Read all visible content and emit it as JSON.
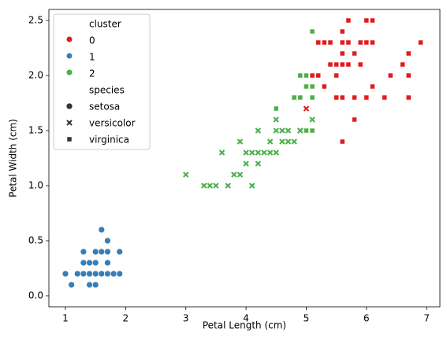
{
  "chart_data": {
    "type": "scatter",
    "xlabel": "Petal Length (cm)",
    "ylabel": "Petal Width (cm)",
    "xlim": [
      0.725,
      7.22
    ],
    "ylim": [
      -0.1,
      2.6
    ],
    "xticks": [
      1,
      2,
      3,
      4,
      5,
      6,
      7
    ],
    "yticks": [
      {
        "value": 0,
        "label": "0.0"
      },
      0.5,
      {
        "value": 1,
        "label": "1.0"
      },
      1.5,
      {
        "value": 2,
        "label": "2.0"
      },
      2.5
    ],
    "hue": {
      "title": "cluster",
      "levels": [
        {
          "name": "0",
          "color": "#e41a1c"
        },
        {
          "name": "1",
          "color": "#377eb8"
        },
        {
          "name": "2",
          "color": "#4daf4a"
        }
      ]
    },
    "style": {
      "title": "species",
      "levels": [
        {
          "name": "setosa",
          "marker": "circle"
        },
        {
          "name": "versicolor",
          "marker": "x"
        },
        {
          "name": "virginica",
          "marker": "square"
        }
      ]
    },
    "x": [
      1.4,
      1.3,
      1.5,
      1.7,
      1.4,
      1.5,
      1.6,
      1.4,
      1.1,
      1.2,
      1.5,
      1.3,
      1.7,
      1.5,
      1.0,
      1.9,
      1.6,
      1.9,
      1.6,
      1.3,
      1.7,
      1.7,
      1.8,
      1.4,
      4.7,
      4.5,
      4.9,
      4.0,
      4.6,
      3.3,
      3.9,
      3.5,
      4.2,
      4.4,
      4.1,
      3.9,
      4.8,
      4.3,
      5.0,
      3.8,
      3.7,
      5.1,
      4.5,
      4.7,
      4.4,
      4.1,
      4.6,
      4.0,
      4.2,
      3.0,
      3.6,
      4.2,
      3.4,
      4.8,
      4.9,
      4.5,
      6.0,
      5.1,
      5.9,
      5.6,
      5.8,
      6.6,
      4.5,
      6.3,
      6.1,
      5.1,
      5.3,
      5.5,
      5.0,
      5.1,
      5.3,
      6.7,
      6.9,
      5.0,
      5.7,
      4.9,
      6.7,
      4.9,
      5.7,
      6.0,
      4.8,
      5.6,
      5.8,
      6.1,
      6.4,
      5.6,
      5.1,
      5.6,
      6.1,
      5.6,
      5.4,
      5.9,
      5.7,
      5.2,
      5.0,
      5.2,
      5.4,
      5.1,
      6.7,
      5.8,
      6.3,
      5.5,
      5.8,
      5.5,
      5.6,
      6.0,
      5.9
    ],
    "y": [
      0.2,
      0.2,
      0.2,
      0.4,
      0.3,
      0.1,
      0.2,
      0.1,
      0.1,
      0.2,
      0.4,
      0.4,
      0.3,
      0.3,
      0.2,
      0.2,
      0.4,
      0.4,
      0.6,
      0.3,
      0.5,
      0.2,
      0.2,
      0.2,
      1.4,
      1.5,
      1.5,
      1.3,
      1.5,
      1.0,
      1.4,
      1.0,
      1.5,
      1.4,
      1.0,
      1.1,
      1.8,
      1.3,
      1.7,
      1.1,
      1.0,
      1.6,
      1.6,
      1.5,
      1.3,
      1.3,
      1.4,
      1.2,
      1.2,
      1.1,
      1.3,
      1.3,
      1.0,
      1.4,
      1.5,
      1.3,
      2.5,
      1.9,
      2.1,
      1.8,
      2.2,
      2.1,
      1.7,
      1.8,
      2.5,
      2.0,
      1.9,
      2.1,
      2.0,
      2.4,
      2.3,
      2.2,
      2.3,
      1.5,
      2.3,
      2.0,
      2.0,
      1.8,
      2.1,
      1.8,
      1.8,
      2.1,
      1.6,
      1.9,
      2.0,
      2.2,
      1.5,
      1.4,
      2.3,
      2.4,
      2.1,
      2.3,
      2.5,
      2.3,
      1.9,
      2.0,
      2.3,
      1.8,
      1.8,
      1.8,
      1.8,
      1.8,
      2.2,
      2.0,
      2.3,
      2.3,
      2.1
    ],
    "cluster": [
      1,
      1,
      1,
      1,
      1,
      1,
      1,
      1,
      1,
      1,
      1,
      1,
      1,
      1,
      1,
      1,
      1,
      1,
      1,
      1,
      1,
      1,
      1,
      1,
      2,
      2,
      2,
      2,
      2,
      2,
      2,
      2,
      2,
      2,
      2,
      2,
      2,
      2,
      0,
      2,
      2,
      2,
      2,
      2,
      2,
      2,
      2,
      2,
      2,
      2,
      2,
      2,
      2,
      2,
      2,
      2,
      0,
      2,
      0,
      0,
      0,
      0,
      2,
      0,
      0,
      0,
      0,
      0,
      2,
      2,
      0,
      0,
      0,
      2,
      0,
      2,
      0,
      2,
      0,
      0,
      2,
      0,
      0,
      0,
      0,
      0,
      2,
      0,
      0,
      0,
      0,
      0,
      0,
      0,
      2,
      0,
      0,
      2,
      0,
      0,
      0,
      0,
      0,
      0,
      0,
      0,
      0
    ],
    "species": [
      0,
      0,
      0,
      0,
      0,
      0,
      0,
      0,
      0,
      0,
      0,
      0,
      0,
      0,
      0,
      0,
      0,
      0,
      0,
      0,
      0,
      0,
      0,
      0,
      1,
      1,
      1,
      1,
      1,
      1,
      1,
      1,
      1,
      1,
      1,
      1,
      1,
      1,
      1,
      1,
      1,
      1,
      1,
      1,
      1,
      1,
      1,
      1,
      1,
      1,
      1,
      1,
      1,
      1,
      1,
      1,
      2,
      2,
      2,
      2,
      2,
      2,
      2,
      2,
      2,
      2,
      2,
      2,
      2,
      2,
      2,
      2,
      2,
      2,
      2,
      2,
      2,
      2,
      2,
      2,
      2,
      2,
      2,
      2,
      2,
      2,
      2,
      2,
      2,
      2,
      2,
      2,
      2,
      2,
      2,
      2,
      2,
      2,
      2,
      2,
      2,
      2,
      2,
      2,
      2,
      2,
      2
    ]
  }
}
